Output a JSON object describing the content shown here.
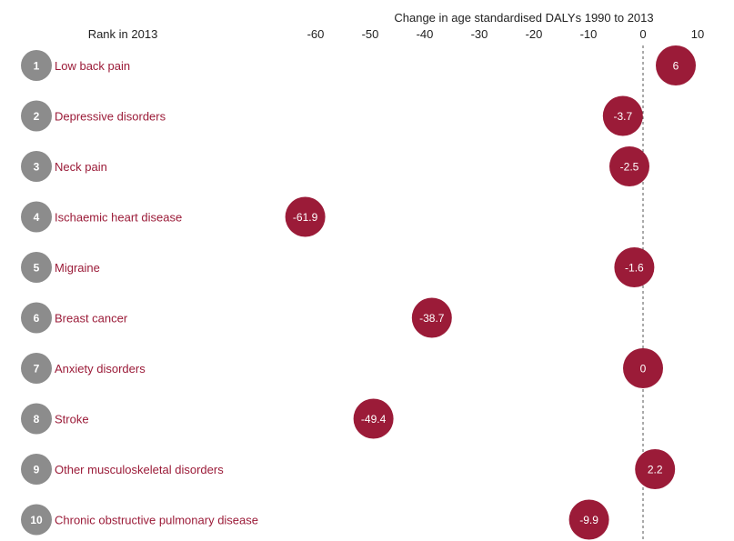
{
  "chart_data": {
    "type": "scatter",
    "title": "Change in age standardised DALYs 1990 to 2013",
    "rank_header": "Rank in 2013",
    "xlim": [
      -70,
      10
    ],
    "x_ticks": [
      -60,
      -50,
      -40,
      -30,
      -20,
      -10,
      0,
      10
    ],
    "zero_line": "dashed",
    "grid": false,
    "points": [
      {
        "rank": "1",
        "label": "Low back pain",
        "value": 6
      },
      {
        "rank": "2",
        "label": "Depressive disorders",
        "value": -3.7
      },
      {
        "rank": "3",
        "label": "Neck pain",
        "value": -2.5
      },
      {
        "rank": "4",
        "label": "Ischaemic heart disease",
        "value": -61.9
      },
      {
        "rank": "5",
        "label": "Migraine",
        "value": -1.6
      },
      {
        "rank": "6",
        "label": "Breast cancer",
        "value": -38.7
      },
      {
        "rank": "7",
        "label": "Anxiety disorders",
        "value": 0
      },
      {
        "rank": "8",
        "label": "Stroke",
        "value": -49.4
      },
      {
        "rank": "9",
        "label": "Other musculoskeletal disorders",
        "value": 2.2
      },
      {
        "rank": "10",
        "label": "Chronic obstructive pulmonary disease",
        "value": -9.9
      }
    ]
  },
  "colors": {
    "bubble": "#9b1b38",
    "label": "#9b1b38",
    "rank_circle": "#8c8c8c",
    "text": "#222222",
    "zero_line": "#555555"
  }
}
